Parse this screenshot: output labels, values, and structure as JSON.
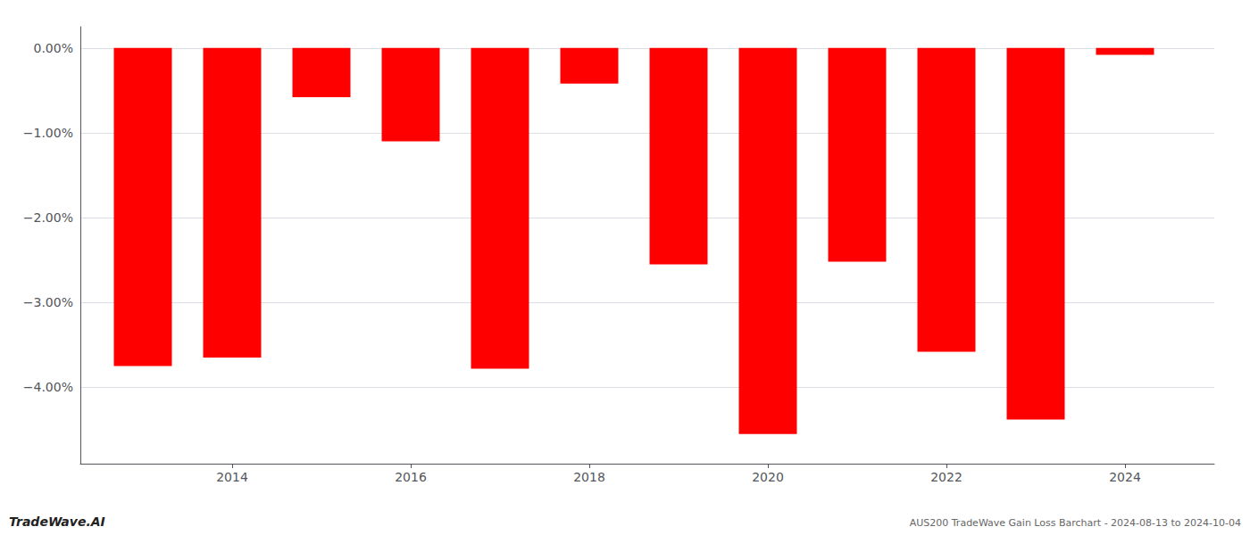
{
  "chart_data": {
    "type": "bar",
    "x": [
      2013,
      2014,
      2015,
      2016,
      2017,
      2018,
      2019,
      2020,
      2021,
      2022,
      2023,
      2024
    ],
    "values": [
      -3.75,
      -3.65,
      -0.58,
      -1.1,
      -3.78,
      -0.42,
      -2.55,
      -4.55,
      -2.52,
      -3.58,
      -4.38,
      -0.08
    ],
    "color": "#ff0000",
    "xlim": [
      2012.3,
      2025.0
    ],
    "xticks": [
      2014,
      2016,
      2018,
      2020,
      2022,
      2024
    ],
    "ylim": [
      -4.9,
      0.25
    ],
    "yticks": [
      {
        "value": 0.0,
        "label": "0.00%"
      },
      {
        "value": -1.0,
        "label": "−1.00%"
      },
      {
        "value": -2.0,
        "label": "−2.00%"
      },
      {
        "value": -3.0,
        "label": "−3.00%"
      },
      {
        "value": -4.0,
        "label": "−4.00%"
      }
    ],
    "grid": true,
    "annotations": [
      "TradeWave.AI",
      "AUS200 TradeWave Gain Loss Barchart - 2024-08-13 to 2024-10-04"
    ]
  }
}
